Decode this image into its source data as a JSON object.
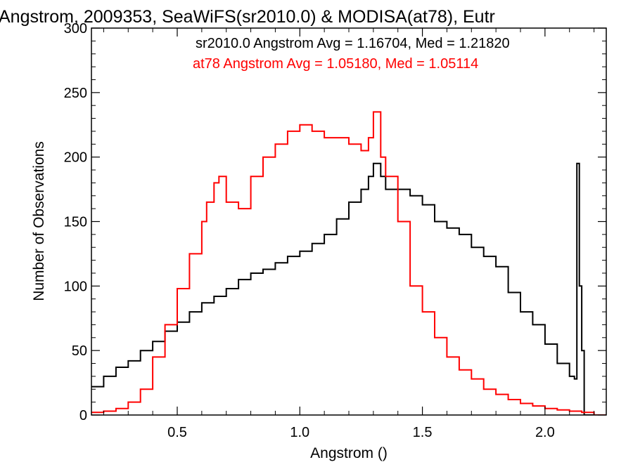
{
  "chart_data": {
    "type": "line",
    "step": true,
    "title": "Angstrom, 2009353, SeaWiFS(sr2010.0) & MODISA(at78), Eutr",
    "xlabel": "Angstrom ()",
    "ylabel": "Number of Observations",
    "xlim": [
      0.15,
      2.25
    ],
    "ylim": [
      0,
      300
    ],
    "xticks": [
      0.5,
      1.0,
      1.5,
      2.0
    ],
    "xtick_labels": [
      "0.5",
      "1.0",
      "1.5",
      "2.0"
    ],
    "yticks": [
      0,
      50,
      100,
      150,
      200,
      250,
      300
    ],
    "ytick_labels": [
      "0",
      "50",
      "100",
      "150",
      "200",
      "250",
      "300"
    ],
    "grid": false,
    "legend": "top-right",
    "annotations": [
      {
        "text": "sr2010.0 Angstrom Avg = 1.16704, Med = 1.21820",
        "color": "#000000"
      },
      {
        "text": "at78 Angstrom Avg = 1.05180, Med = 1.05114",
        "color": "#ff0000"
      }
    ],
    "series": [
      {
        "color": "#000000",
        "x": [
          0.15,
          0.2,
          0.25,
          0.3,
          0.35,
          0.4,
          0.45,
          0.5,
          0.55,
          0.6,
          0.65,
          0.7,
          0.75,
          0.8,
          0.85,
          0.9,
          0.95,
          1.0,
          1.05,
          1.1,
          1.15,
          1.2,
          1.25,
          1.28,
          1.3,
          1.33,
          1.35,
          1.4,
          1.45,
          1.5,
          1.55,
          1.6,
          1.65,
          1.7,
          1.75,
          1.8,
          1.85,
          1.9,
          1.95,
          2.0,
          2.05,
          2.1,
          2.12,
          2.13,
          2.14,
          2.15,
          2.16,
          2.2,
          2.25
        ],
        "y": [
          22,
          30,
          37,
          42,
          50,
          57,
          65,
          72,
          80,
          87,
          92,
          98,
          105,
          110,
          113,
          118,
          123,
          127,
          133,
          140,
          152,
          165,
          175,
          185,
          195,
          185,
          175,
          175,
          170,
          163,
          150,
          145,
          140,
          130,
          123,
          115,
          95,
          80,
          70,
          55,
          40,
          30,
          28,
          195,
          100,
          50,
          0,
          0,
          0
        ]
      },
      {
        "color": "#ff0000",
        "x": [
          0.15,
          0.2,
          0.25,
          0.3,
          0.35,
          0.4,
          0.45,
          0.5,
          0.55,
          0.6,
          0.62,
          0.65,
          0.67,
          0.7,
          0.75,
          0.8,
          0.85,
          0.9,
          0.95,
          1.0,
          1.05,
          1.1,
          1.15,
          1.2,
          1.25,
          1.28,
          1.3,
          1.33,
          1.35,
          1.4,
          1.45,
          1.5,
          1.55,
          1.6,
          1.65,
          1.7,
          1.75,
          1.8,
          1.85,
          1.9,
          1.95,
          2.0,
          2.05,
          2.1,
          2.15,
          2.2,
          2.25
        ],
        "y": [
          2,
          3,
          5,
          10,
          20,
          45,
          70,
          98,
          125,
          150,
          165,
          180,
          185,
          165,
          160,
          185,
          200,
          210,
          220,
          225,
          220,
          215,
          215,
          210,
          205,
          215,
          235,
          200,
          185,
          150,
          100,
          80,
          60,
          45,
          35,
          28,
          20,
          16,
          12,
          9,
          7,
          5,
          4,
          3,
          2,
          0,
          0
        ]
      }
    ]
  }
}
